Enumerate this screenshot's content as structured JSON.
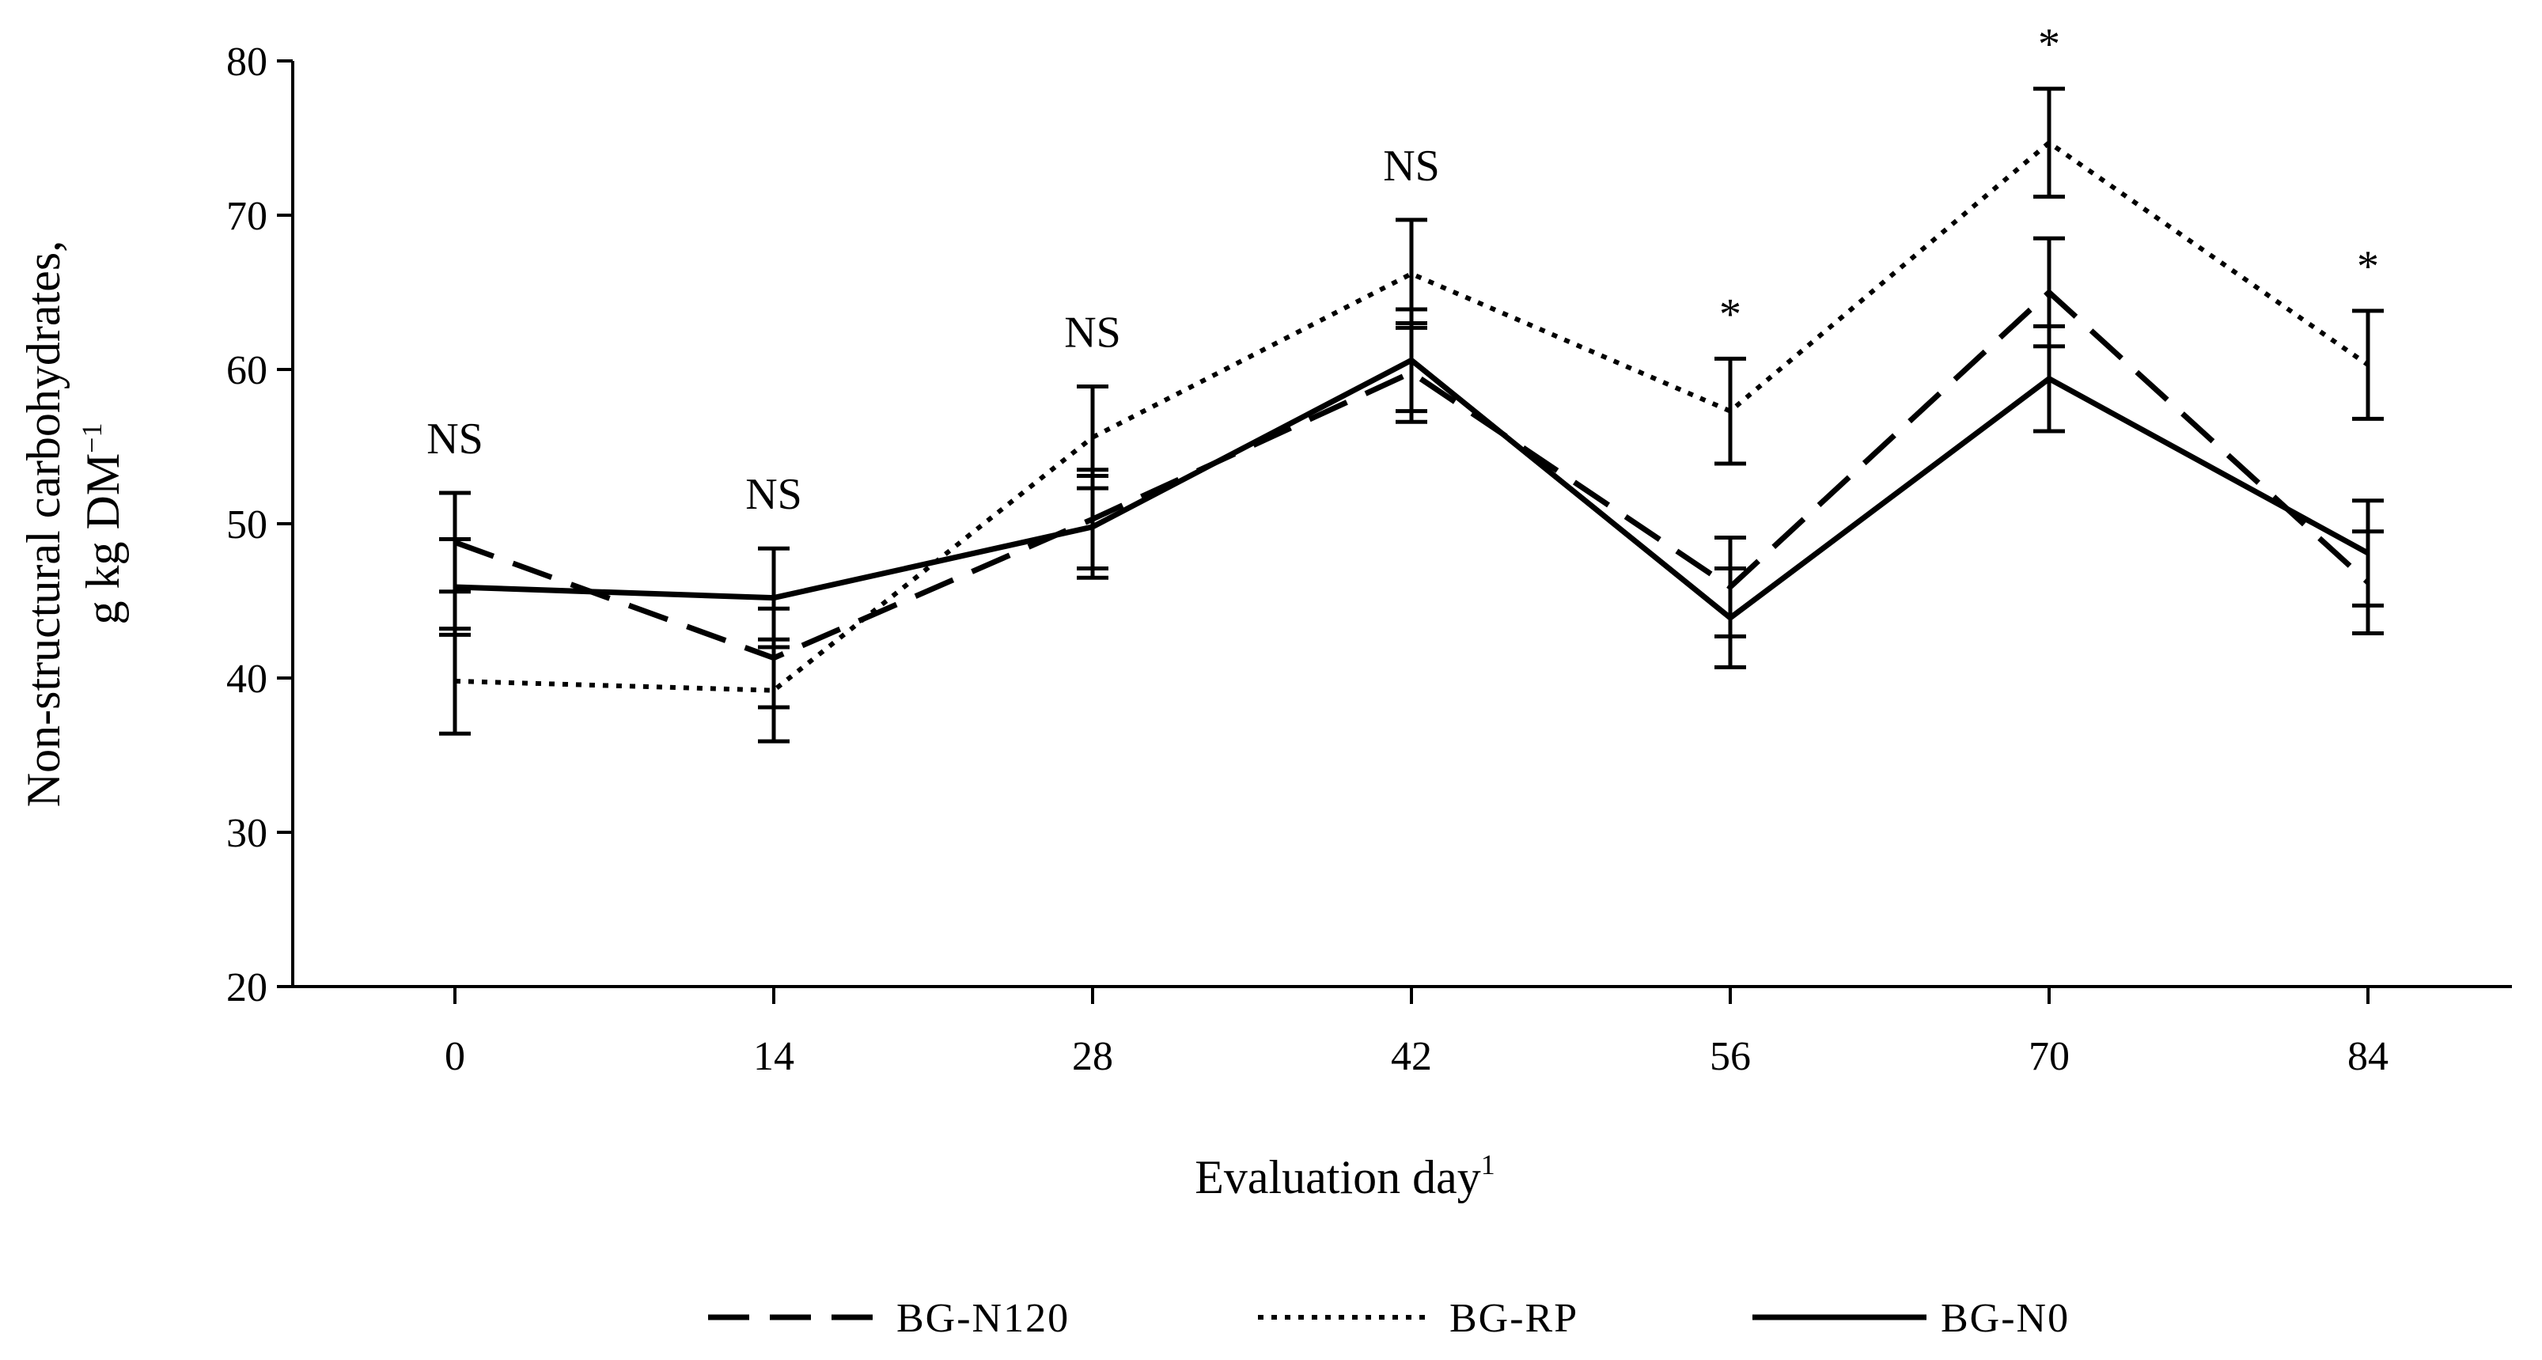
{
  "chart_data": {
    "type": "line",
    "title": "",
    "xlabel": "Evaluation day",
    "xlabel_superscript": "1",
    "ylabel_line1": "Non-structural carbohydrates,",
    "ylabel_line2": "g kg DM",
    "ylabel_superscript": "−1",
    "ylim": [
      20,
      80
    ],
    "yticks": [
      20,
      30,
      40,
      50,
      60,
      70,
      80
    ],
    "categories": [
      "0",
      "14",
      "28",
      "42",
      "56",
      "70",
      "84"
    ],
    "significance": [
      "NS",
      "NS",
      "NS",
      "NS",
      "*",
      "*",
      "*"
    ],
    "legend_position": "bottom",
    "series": [
      {
        "name": "BG-N120",
        "style": "dashed",
        "color": "#000000",
        "values": [
          48.8,
          41.3,
          50.3,
          59.8,
          45.9,
          65.0,
          46.2
        ],
        "errors": [
          3.2,
          3.2,
          3.2,
          3.2,
          3.2,
          3.5,
          3.3
        ]
      },
      {
        "name": "BG-RP",
        "style": "dotted",
        "color": "#000000",
        "values": [
          39.8,
          39.2,
          55.6,
          66.2,
          57.3,
          74.7,
          60.3
        ],
        "errors": [
          3.4,
          3.3,
          3.3,
          3.5,
          3.4,
          3.5,
          3.5
        ]
      },
      {
        "name": "BG-N0",
        "style": "solid",
        "color": "#000000",
        "values": [
          45.9,
          45.2,
          49.8,
          60.6,
          43.9,
          59.4,
          48.1
        ],
        "errors": [
          3.1,
          3.2,
          3.3,
          3.3,
          3.2,
          3.4,
          3.4
        ]
      }
    ]
  }
}
